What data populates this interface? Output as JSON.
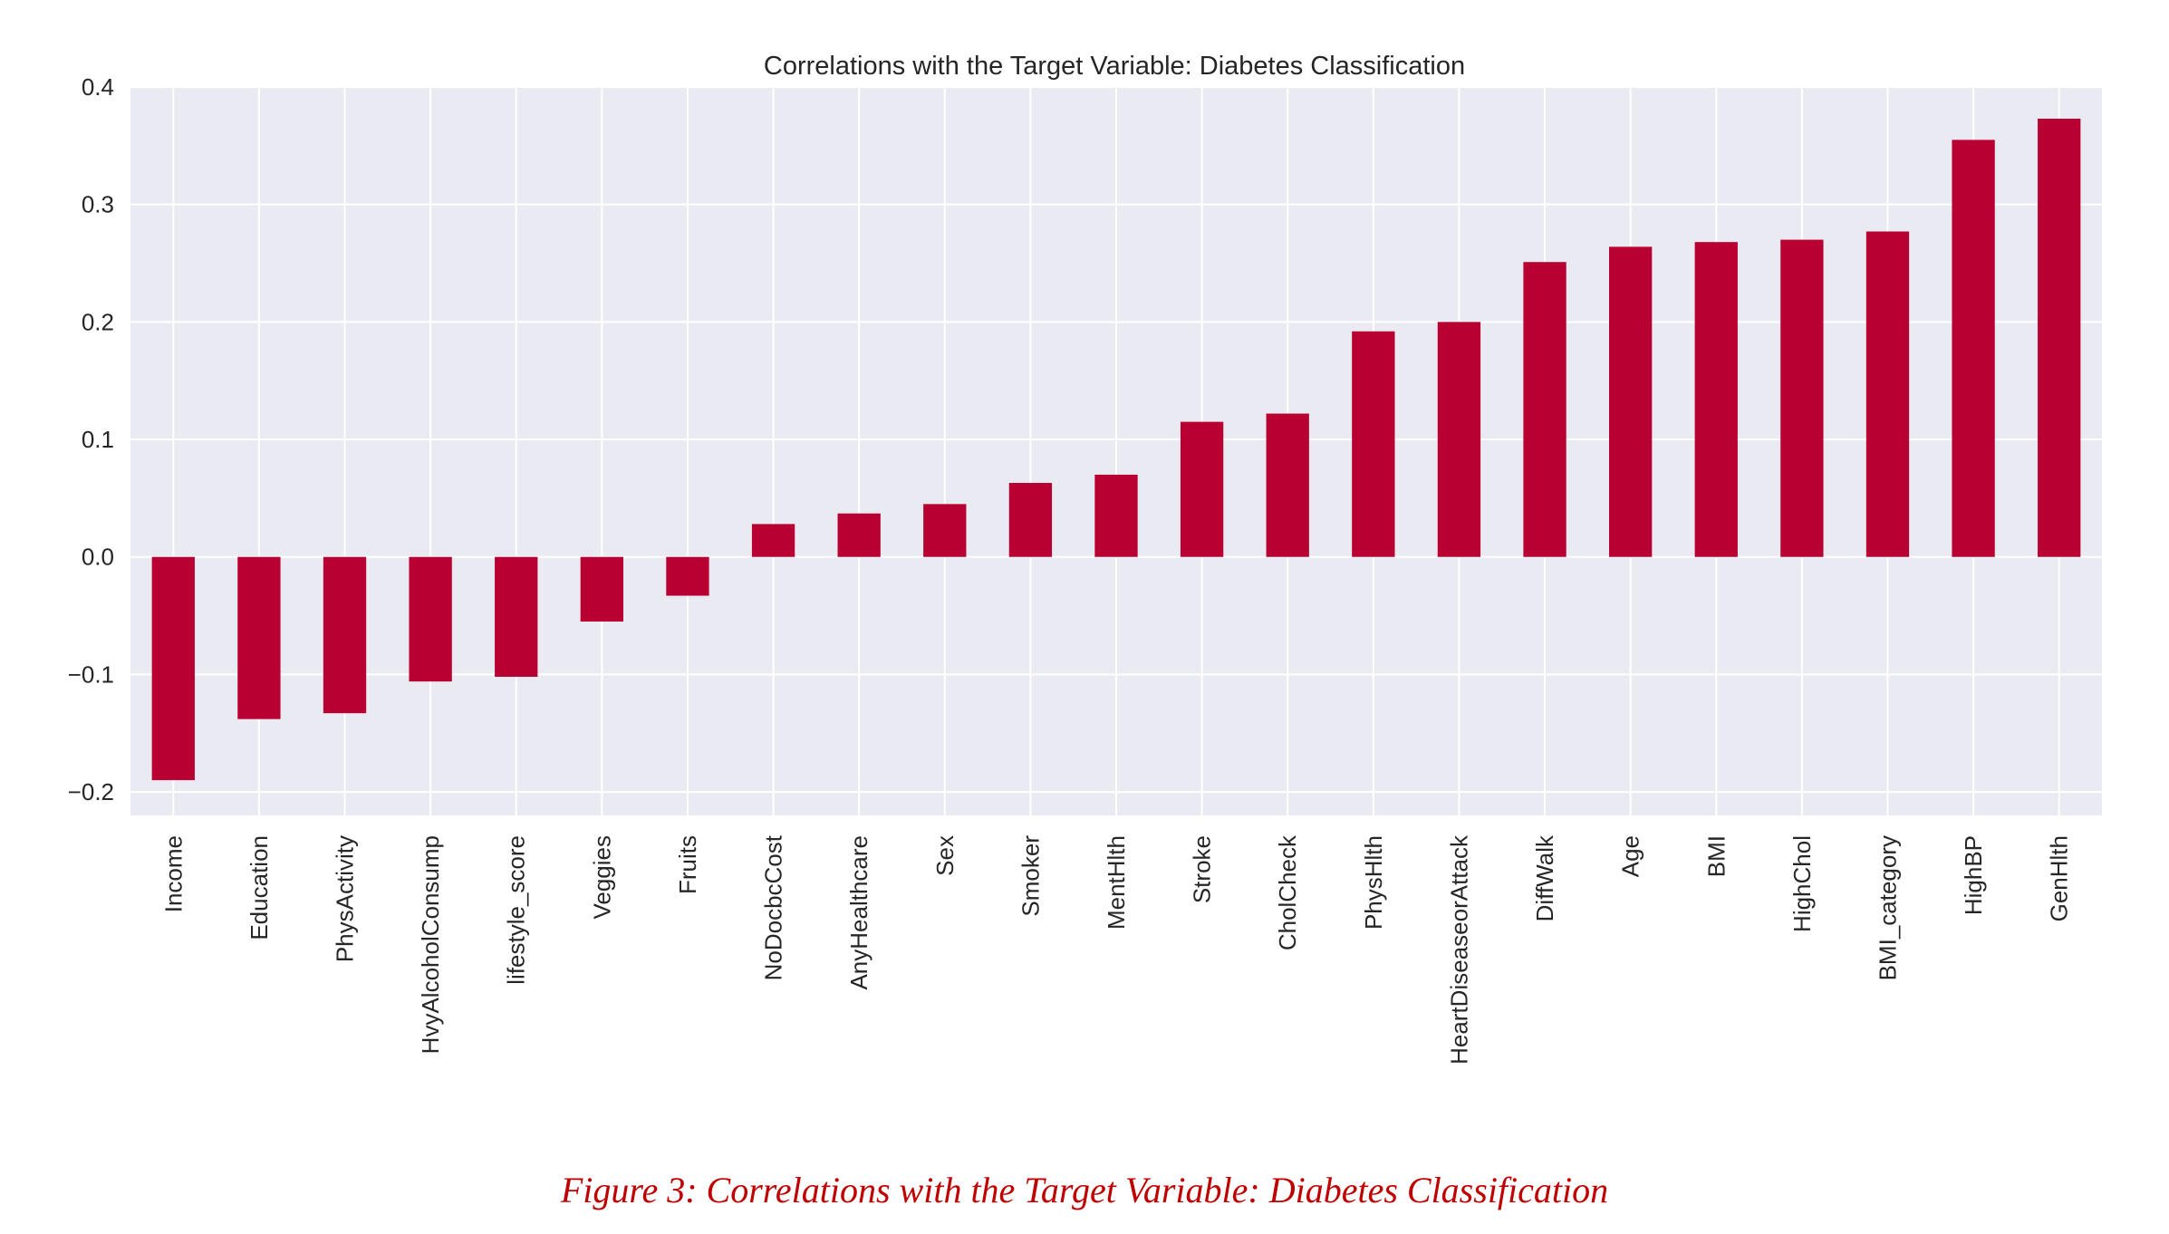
{
  "chart_data": {
    "type": "bar",
    "title": "Correlations with the Target Variable: Diabetes Classification",
    "xlabel": "",
    "ylabel": "",
    "ylim": [
      -0.22,
      0.4
    ],
    "yticks": [
      -0.2,
      -0.1,
      0.0,
      0.1,
      0.2,
      0.3,
      0.4
    ],
    "ytick_labels": [
      "−0.2",
      "−0.1",
      "0.0",
      "0.1",
      "0.2",
      "0.3",
      "0.4"
    ],
    "grid": true,
    "bar_color": "#b90032",
    "categories": [
      "Income",
      "Education",
      "PhysActivity",
      "HvyAlcoholConsump",
      "lifestyle_score",
      "Veggies",
      "Fruits",
      "NoDocbcCost",
      "AnyHealthcare",
      "Sex",
      "Smoker",
      "MentHlth",
      "Stroke",
      "CholCheck",
      "PhysHlth",
      "HeartDiseaseorAttack",
      "DiffWalk",
      "Age",
      "BMI",
      "HighChol",
      "BMI_category",
      "HighBP",
      "GenHlth"
    ],
    "values": [
      -0.19,
      -0.138,
      -0.133,
      -0.106,
      -0.102,
      -0.055,
      -0.033,
      0.028,
      0.037,
      0.045,
      0.063,
      0.07,
      0.115,
      0.122,
      0.192,
      0.2,
      0.251,
      0.264,
      0.268,
      0.27,
      0.277,
      0.355,
      0.373
    ]
  },
  "caption": "Figure 3: Correlations with the Target Variable: Diabetes Classification"
}
